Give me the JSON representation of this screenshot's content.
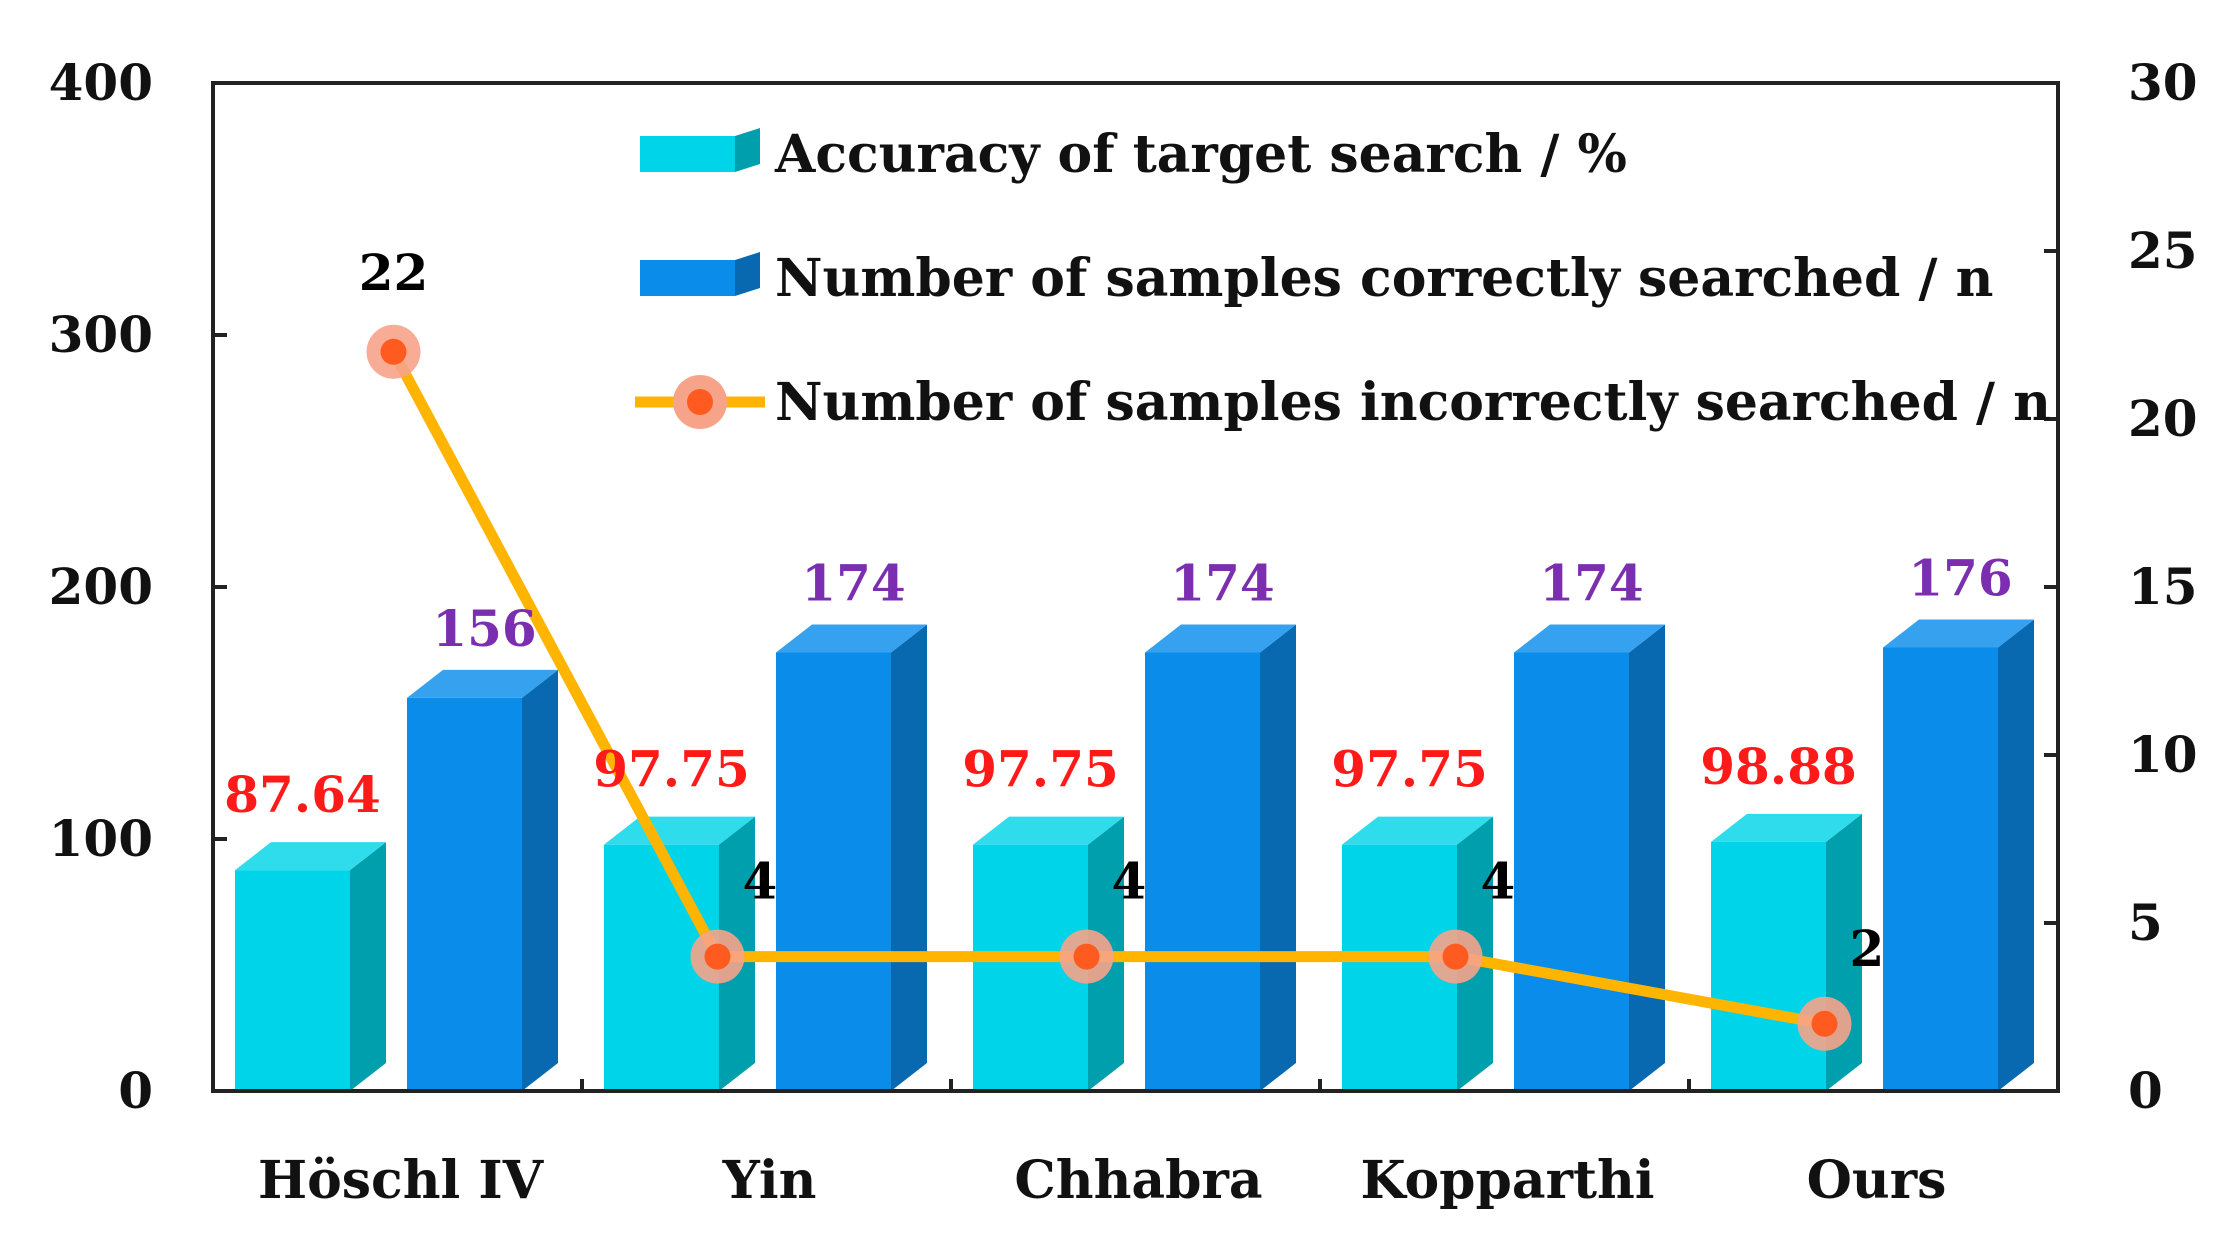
{
  "chart_data": {
    "type": "bar",
    "categories": [
      "Höschl IV",
      "Yin",
      "Chhabra",
      "Kopparthi",
      "Ours"
    ],
    "series": [
      {
        "name": "Accuracy of target search / %",
        "values": [
          87.64,
          97.75,
          97.75,
          97.75,
          98.88
        ],
        "axis": "left",
        "kind": "bar",
        "color": "#00D4E8",
        "label_color": "#FF1A1A"
      },
      {
        "name": "Number of samples correctly searched / n",
        "values": [
          156,
          174,
          174,
          174,
          176
        ],
        "axis": "left",
        "kind": "bar",
        "color": "#0A8CEB",
        "label_color": "#7B2FB0"
      },
      {
        "name": "Number of samples incorrectly searched / n",
        "values": [
          22,
          4,
          4,
          4,
          2
        ],
        "axis": "right",
        "kind": "line",
        "color": "#FFB400",
        "marker_color": "#FF5A1F",
        "label_color": "#000000"
      }
    ],
    "y_left": {
      "ylim": [
        0,
        400
      ],
      "ticks": [
        "0",
        "100",
        "200",
        "300",
        "400"
      ]
    },
    "y_right": {
      "ylim": [
        0,
        30
      ],
      "ticks": [
        "0",
        "5",
        "10",
        "15",
        "20",
        "25",
        "30"
      ]
    },
    "legend_placement": "top",
    "grid": false
  }
}
